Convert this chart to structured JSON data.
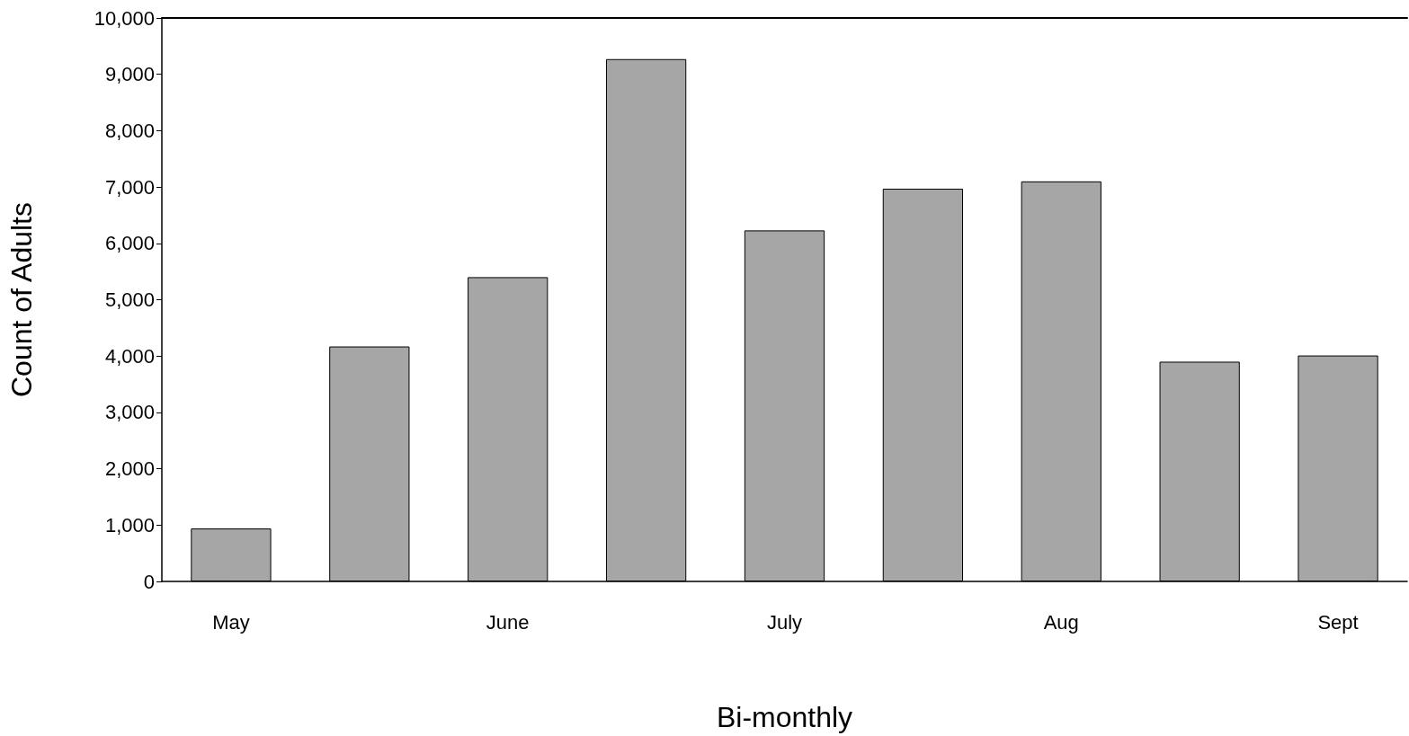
{
  "chart_data": {
    "type": "bar",
    "xlabel": "Bi-monthly",
    "ylabel": "Count of Adults",
    "categories": [
      "May",
      null,
      "June",
      null,
      "July",
      null,
      "Aug",
      null,
      "Sept"
    ],
    "values": [
      940,
      4170,
      5400,
      9270,
      6230,
      6970,
      7100,
      3900,
      4010
    ],
    "color": "#a6a6a6",
    "ylim": [
      0,
      10000
    ],
    "yticks": [
      0,
      {
        "value": 1000,
        "label": "1,000"
      },
      {
        "value": 2000,
        "label": "2,000"
      },
      {
        "value": 3000,
        "label": "3,000"
      },
      {
        "value": 4000,
        "label": "4,000"
      },
      {
        "value": 5000,
        "label": "5,000"
      },
      {
        "value": 6000,
        "label": "6,000"
      },
      {
        "value": 7000,
        "label": "7,000"
      },
      {
        "value": 8000,
        "label": "8,000"
      },
      {
        "value": 9000,
        "label": "9,000"
      },
      {
        "value": 10000,
        "label": "10,000"
      }
    ],
    "grid": false
  }
}
